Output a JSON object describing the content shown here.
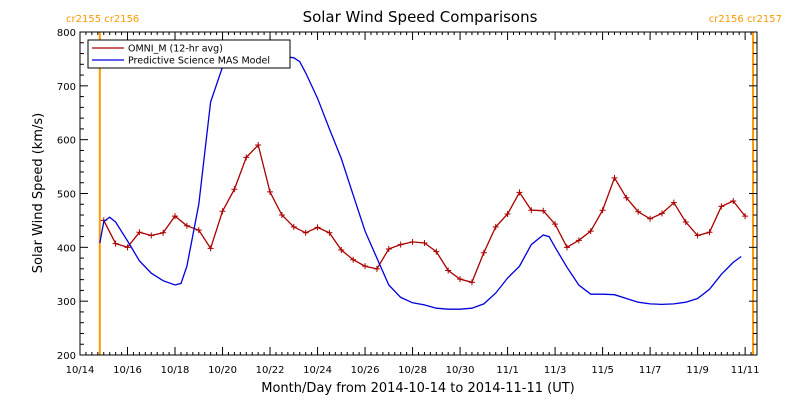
{
  "chart_data": {
    "type": "line",
    "title": "Solar Wind Speed Comparisons",
    "xlabel": "Month/Day from 2014-10-14 to 2014-11-11 (UT)",
    "ylabel": "Solar Wind Speed (km/s)",
    "xlim": [
      "2014-10-14",
      "2014-11-11T12:00"
    ],
    "ylim": [
      200,
      800
    ],
    "x_ticks": [
      "10/14",
      "10/16",
      "10/18",
      "10/20",
      "10/22",
      "10/24",
      "10/26",
      "10/28",
      "10/30",
      "11/1",
      "11/3",
      "11/5",
      "11/7",
      "11/9",
      "11/11"
    ],
    "y_ticks": [
      200,
      300,
      400,
      500,
      600,
      700,
      800
    ],
    "grid": false,
    "legend_position": "top-left",
    "boundaries": [
      {
        "date": "2014-10-14T20:00",
        "label": "cr2155 cr2156",
        "side": "left"
      },
      {
        "date": "2014-11-11T08:00",
        "label": "cr2156 cr2157",
        "side": "right"
      }
    ],
    "series": [
      {
        "name": "OMNI_M (12-hr avg)",
        "color": "#aa0000",
        "marker": "plus",
        "points": [
          [
            "2014-10-15T00:00",
            450
          ],
          [
            "2014-10-15T12:00",
            407
          ],
          [
            "2014-10-16T00:00",
            400
          ],
          [
            "2014-10-16T12:00",
            428
          ],
          [
            "2014-10-17T00:00",
            422
          ],
          [
            "2014-10-17T12:00",
            427
          ],
          [
            "2014-10-18T00:00",
            458
          ],
          [
            "2014-10-18T12:00",
            440
          ],
          [
            "2014-10-19T00:00",
            432
          ],
          [
            "2014-10-19T12:00",
            398
          ],
          [
            "2014-10-20T00:00",
            467
          ],
          [
            "2014-10-20T12:00",
            508
          ],
          [
            "2014-10-21T00:00",
            567
          ],
          [
            "2014-10-21T12:00",
            590
          ],
          [
            "2014-10-22T00:00",
            503
          ],
          [
            "2014-10-22T12:00",
            460
          ],
          [
            "2014-10-23T00:00",
            438
          ],
          [
            "2014-10-23T12:00",
            427
          ],
          [
            "2014-10-24T00:00",
            437
          ],
          [
            "2014-10-24T12:00",
            427
          ],
          [
            "2014-10-25T00:00",
            395
          ],
          [
            "2014-10-25T12:00",
            377
          ],
          [
            "2014-10-26T00:00",
            365
          ],
          [
            "2014-10-26T12:00",
            360
          ],
          [
            "2014-10-27T00:00",
            397
          ],
          [
            "2014-10-27T12:00",
            405
          ],
          [
            "2014-10-28T00:00",
            410
          ],
          [
            "2014-10-28T12:00",
            408
          ],
          [
            "2014-10-29T00:00",
            392
          ],
          [
            "2014-10-29T12:00",
            357
          ],
          [
            "2014-10-30T00:00",
            341
          ],
          [
            "2014-10-30T12:00",
            335
          ],
          [
            "2014-10-31T00:00",
            390
          ],
          [
            "2014-10-31T12:00",
            438
          ],
          [
            "2014-11-01T00:00",
            462
          ],
          [
            "2014-11-01T12:00",
            502
          ],
          [
            "2014-11-02T00:00",
            469
          ],
          [
            "2014-11-02T12:00",
            468
          ],
          [
            "2014-11-03T00:00",
            443
          ],
          [
            "2014-11-03T12:00",
            400
          ],
          [
            "2014-11-04T00:00",
            413
          ],
          [
            "2014-11-04T12:00",
            430
          ],
          [
            "2014-11-05T00:00",
            469
          ],
          [
            "2014-11-05T12:00",
            529
          ],
          [
            "2014-11-06T00:00",
            492
          ],
          [
            "2014-11-06T12:00",
            466
          ],
          [
            "2014-11-07T00:00",
            453
          ],
          [
            "2014-11-07T12:00",
            463
          ],
          [
            "2014-11-08T00:00",
            483
          ],
          [
            "2014-11-08T12:00",
            447
          ],
          [
            "2014-11-09T00:00",
            422
          ],
          [
            "2014-11-09T12:00",
            428
          ],
          [
            "2014-11-10T00:00",
            476
          ],
          [
            "2014-11-10T12:00",
            486
          ],
          [
            "2014-11-11T00:00",
            458
          ]
        ]
      },
      {
        "name": "Predictive Science MAS Model",
        "color": "#0000dd",
        "marker": "none",
        "points": [
          [
            "2014-10-14T20:00",
            408
          ],
          [
            "2014-10-15T00:00",
            448
          ],
          [
            "2014-10-15T06:00",
            456
          ],
          [
            "2014-10-15T12:00",
            447
          ],
          [
            "2014-10-16T00:00",
            412
          ],
          [
            "2014-10-16T12:00",
            375
          ],
          [
            "2014-10-17T00:00",
            352
          ],
          [
            "2014-10-17T12:00",
            338
          ],
          [
            "2014-10-18T00:00",
            330
          ],
          [
            "2014-10-18T06:00",
            333
          ],
          [
            "2014-10-18T12:00",
            365
          ],
          [
            "2014-10-19T00:00",
            480
          ],
          [
            "2014-10-19T12:00",
            670
          ],
          [
            "2014-10-20T00:00",
            735
          ],
          [
            "2014-10-20T12:00",
            752
          ],
          [
            "2014-10-21T00:00",
            756
          ],
          [
            "2014-10-21T12:00",
            756
          ],
          [
            "2014-10-22T00:00",
            756
          ],
          [
            "2014-10-22T12:00",
            755
          ],
          [
            "2014-10-23T00:00",
            752
          ],
          [
            "2014-10-23T06:00",
            745
          ],
          [
            "2014-10-23T12:00",
            724
          ],
          [
            "2014-10-24T00:00",
            677
          ],
          [
            "2014-10-24T12:00",
            620
          ],
          [
            "2014-10-25T00:00",
            565
          ],
          [
            "2014-10-25T12:00",
            497
          ],
          [
            "2014-10-26T00:00",
            430
          ],
          [
            "2014-10-26T12:00",
            380
          ],
          [
            "2014-10-27T00:00",
            330
          ],
          [
            "2014-10-27T12:00",
            307
          ],
          [
            "2014-10-28T00:00",
            297
          ],
          [
            "2014-10-28T12:00",
            293
          ],
          [
            "2014-10-29T00:00",
            287
          ],
          [
            "2014-10-29T12:00",
            285
          ],
          [
            "2014-10-30T00:00",
            285
          ],
          [
            "2014-10-30T12:00",
            287
          ],
          [
            "2014-10-31T00:00",
            295
          ],
          [
            "2014-10-31T12:00",
            315
          ],
          [
            "2014-11-01T00:00",
            343
          ],
          [
            "2014-11-01T12:00",
            365
          ],
          [
            "2014-11-02T00:00",
            405
          ],
          [
            "2014-11-02T12:00",
            423
          ],
          [
            "2014-11-02T18:00",
            420
          ],
          [
            "2014-11-03T00:00",
            400
          ],
          [
            "2014-11-03T12:00",
            363
          ],
          [
            "2014-11-04T00:00",
            330
          ],
          [
            "2014-11-04T12:00",
            313
          ],
          [
            "2014-11-05T00:00",
            313
          ],
          [
            "2014-11-05T12:00",
            312
          ],
          [
            "2014-11-06T00:00",
            305
          ],
          [
            "2014-11-06T12:00",
            298
          ],
          [
            "2014-11-07T00:00",
            295
          ],
          [
            "2014-11-07T12:00",
            294
          ],
          [
            "2014-11-08T00:00",
            295
          ],
          [
            "2014-11-08T12:00",
            298
          ],
          [
            "2014-11-09T00:00",
            305
          ],
          [
            "2014-11-09T12:00",
            322
          ],
          [
            "2014-11-10T00:00",
            350
          ],
          [
            "2014-11-10T12:00",
            372
          ],
          [
            "2014-11-10T20:00",
            383
          ]
        ]
      }
    ]
  }
}
